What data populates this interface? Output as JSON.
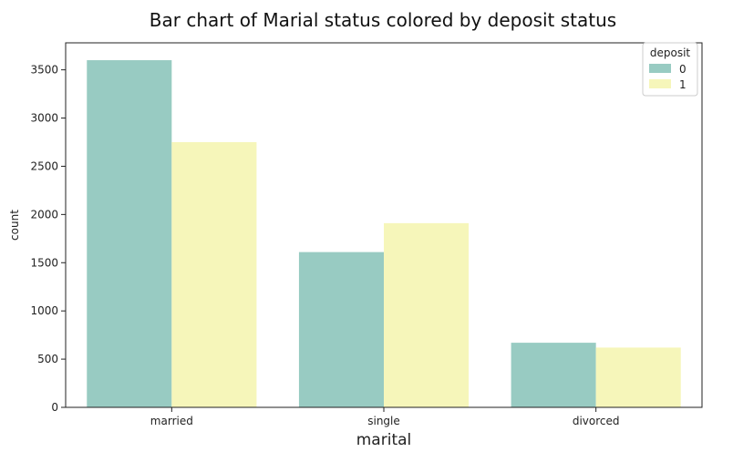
{
  "chart_data": {
    "type": "bar",
    "title": "Bar chart of Marial status colored by deposit status",
    "xlabel": "marital",
    "ylabel": "count",
    "categories": [
      "married",
      "single",
      "divorced"
    ],
    "series": [
      {
        "name": "0",
        "values": [
          3600,
          1610,
          670
        ],
        "color": "#98cbc2"
      },
      {
        "name": "1",
        "values": [
          2750,
          1910,
          620
        ],
        "color": "#f6f6ba"
      }
    ],
    "ylim": [
      0,
      3780
    ],
    "yticks": [
      0,
      500,
      1000,
      1500,
      2000,
      2500,
      3000,
      3500
    ],
    "grid": false,
    "legend": {
      "title": "deposit",
      "placement": "top-right"
    }
  }
}
